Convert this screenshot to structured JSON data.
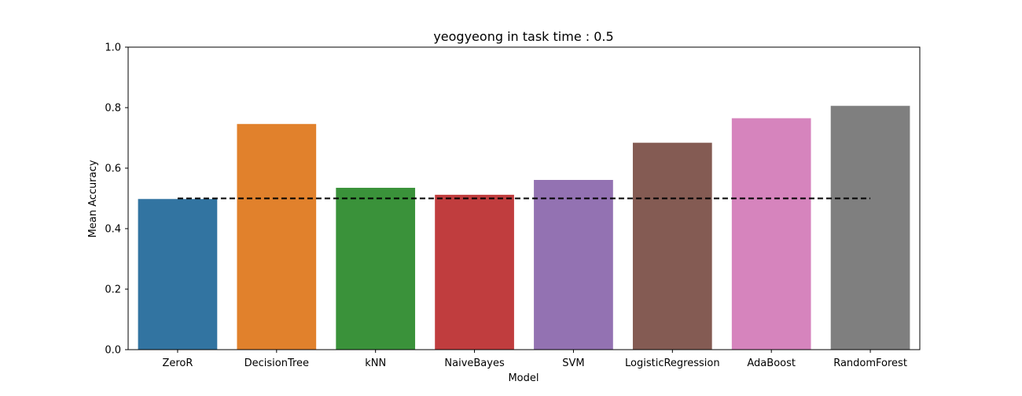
{
  "chart_data": {
    "type": "bar",
    "title": "yeogyeong in task time : 0.5",
    "xlabel": "Model",
    "ylabel": "Mean Accuracy",
    "categories": [
      "ZeroR",
      "DecisionTree",
      "kNN",
      "NaiveBayes",
      "SVM",
      "LogisticRegression",
      "AdaBoost",
      "RandomForest"
    ],
    "values": [
      0.498,
      0.746,
      0.535,
      0.512,
      0.561,
      0.684,
      0.765,
      0.806
    ],
    "colors": [
      "#3274a1",
      "#e1812c",
      "#3a923a",
      "#c03d3e",
      "#9372b2",
      "#845b53",
      "#d684bd",
      "#7f7f7f"
    ],
    "ylim": [
      0,
      1.0
    ],
    "yticks": [
      "0.0",
      "0.2",
      "0.4",
      "0.6",
      "0.8",
      "1.0"
    ],
    "reference_line": {
      "y": 0.5,
      "style": "dashed",
      "color": "#000000"
    },
    "grid": false,
    "legend": "none"
  }
}
